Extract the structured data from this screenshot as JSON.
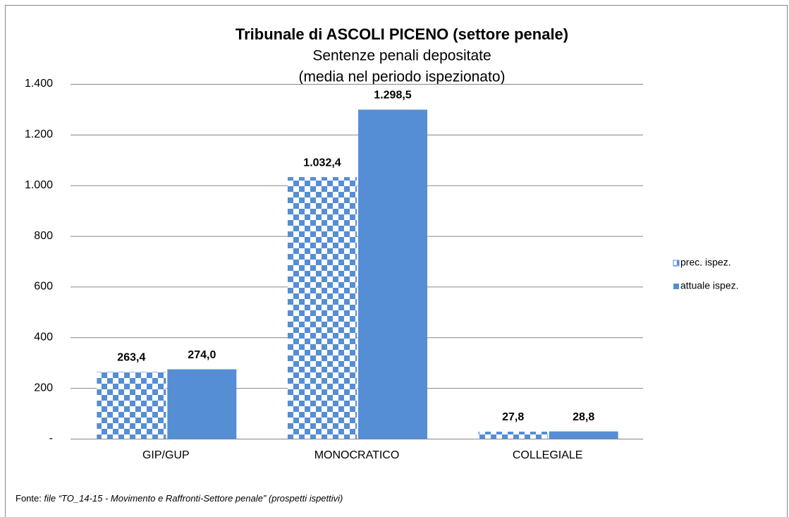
{
  "chart_data": {
    "type": "bar",
    "title": "Tribunale di ASCOLI PICENO (settore penale)",
    "subtitle": [
      "Sentenze penali depositate",
      "(media nel periodo ispezionato)"
    ],
    "categories": [
      "GIP/GUP",
      "MONOCRATICO",
      "COLLEGIALE"
    ],
    "series": [
      {
        "name": "prec. ispez.",
        "color": "#558ed5",
        "pattern": "checkerboard",
        "values": [
          263.4,
          1032.4,
          27.8
        ],
        "value_labels": [
          "263,4",
          "1.032,4",
          "27,8"
        ]
      },
      {
        "name": "attuale ispez.",
        "color": "#558ed5",
        "values": [
          274.0,
          1298.5,
          28.8
        ],
        "value_labels": [
          "274,0",
          "1.298,5",
          "28,8"
        ]
      }
    ],
    "ylim": [
      0,
      1400
    ],
    "yticks": [
      {
        "value": 0,
        "label": "-"
      },
      200,
      400,
      600,
      800,
      {
        "value": 1000,
        "label": "1.000"
      },
      {
        "value": 1200,
        "label": "1.200"
      },
      {
        "value": 1400,
        "label": "1.400"
      }
    ],
    "grid": true,
    "legend": "right",
    "source_label": "Fonte:",
    "source": "file “TO_14-15 - Movimento e Raffronti-Settore penale” (prospetti ispettivi)"
  }
}
